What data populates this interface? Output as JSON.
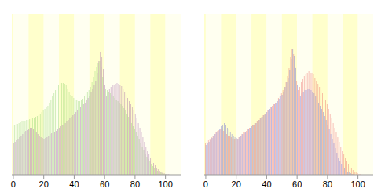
{
  "chart_data": [
    {
      "type": "bar",
      "x": [
        0,
        1,
        2,
        3,
        4,
        5,
        6,
        7,
        8,
        9,
        10,
        11,
        12,
        13,
        14,
        15,
        16,
        17,
        18,
        19,
        20,
        21,
        22,
        23,
        24,
        25,
        26,
        27,
        28,
        29,
        30,
        31,
        32,
        33,
        34,
        35,
        36,
        37,
        38,
        39,
        40,
        41,
        42,
        43,
        44,
        45,
        46,
        47,
        48,
        49,
        50,
        51,
        52,
        53,
        54,
        55,
        56,
        57,
        58,
        59,
        60,
        61,
        62,
        63,
        64,
        65,
        66,
        67,
        68,
        69,
        70,
        71,
        72,
        73,
        74,
        75,
        76,
        77,
        78,
        79,
        80,
        81,
        82,
        83,
        84,
        85,
        86,
        87,
        88,
        89,
        90,
        91,
        92,
        93,
        94,
        95,
        96,
        97,
        98,
        99,
        100,
        101,
        102,
        103,
        104
      ],
      "series": [
        {
          "color": "#88d066",
          "values": [
            62,
            63,
            64,
            65,
            66,
            67,
            68,
            68,
            69,
            70,
            70,
            71,
            72,
            72,
            73,
            74,
            75,
            76,
            78,
            80,
            82,
            84,
            86,
            88,
            92,
            96,
            100,
            104,
            108,
            112,
            114,
            116,
            117,
            117,
            116,
            114,
            110,
            106,
            102,
            100,
            98,
            96,
            95,
            94,
            94,
            95,
            97,
            100,
            103,
            106,
            108,
            112,
            118,
            125,
            132,
            138,
            142,
            145,
            138,
            125,
            115,
            110,
            108,
            106,
            104,
            102,
            100,
            98,
            96,
            94,
            92,
            90,
            88,
            85,
            82,
            78,
            74,
            70,
            66,
            62,
            58,
            54,
            50,
            45,
            40,
            35,
            31,
            27,
            23,
            20,
            17,
            14,
            11,
            9,
            7,
            5,
            4,
            3,
            2,
            1,
            1,
            1,
            0,
            0,
            0
          ]
        },
        {
          "color": "#a060a8",
          "values": [
            40,
            42,
            44,
            46,
            48,
            50,
            52,
            54,
            56,
            57,
            58,
            60,
            60,
            58,
            56,
            54,
            52,
            50,
            48,
            47,
            46,
            47,
            48,
            50,
            52,
            53,
            54,
            55,
            56,
            58,
            60,
            62,
            63,
            64,
            66,
            68,
            70,
            72,
            74,
            76,
            78,
            80,
            82,
            84,
            86,
            88,
            90,
            92,
            95,
            98,
            100,
            105,
            110,
            115,
            120,
            130,
            145,
            157,
            150,
            135,
            115,
            100,
            105,
            110,
            112,
            114,
            115,
            116,
            117,
            116,
            115,
            113,
            110,
            106,
            102,
            98,
            94,
            90,
            86,
            82,
            78,
            72,
            66,
            60,
            54,
            48,
            42,
            36,
            30,
            26,
            22,
            18,
            15,
            12,
            9,
            7,
            5,
            4,
            3,
            2,
            1,
            1,
            1,
            0,
            0
          ]
        }
      ],
      "xlim": [
        -1,
        110
      ],
      "xticks": [
        0,
        20,
        40,
        60,
        80,
        100
      ],
      "ylim": [
        0,
        205
      ],
      "tick_labels": "x"
    },
    {
      "type": "bar",
      "x": [
        0,
        1,
        2,
        3,
        4,
        5,
        6,
        7,
        8,
        9,
        10,
        11,
        12,
        13,
        14,
        15,
        16,
        17,
        18,
        19,
        20,
        21,
        22,
        23,
        24,
        25,
        26,
        27,
        28,
        29,
        30,
        31,
        32,
        33,
        34,
        35,
        36,
        37,
        38,
        39,
        40,
        41,
        42,
        43,
        44,
        45,
        46,
        47,
        48,
        49,
        50,
        51,
        52,
        53,
        54,
        55,
        56,
        57,
        58,
        59,
        60,
        61,
        62,
        63,
        64,
        65,
        66,
        67,
        68,
        69,
        70,
        71,
        72,
        73,
        74,
        75,
        76,
        77,
        78,
        79,
        80,
        81,
        82,
        83,
        84,
        85,
        86,
        87,
        88,
        89,
        90,
        91,
        92,
        93,
        94,
        95,
        96,
        97,
        98,
        99,
        100,
        101,
        102,
        103,
        104
      ],
      "series": [
        {
          "color": "#ee6060",
          "values": [
            40,
            42,
            44,
            46,
            48,
            50,
            52,
            54,
            56,
            57,
            58,
            58,
            56,
            54,
            52,
            50,
            50,
            48,
            46,
            46,
            45,
            46,
            48,
            50,
            52,
            54,
            55,
            56,
            58,
            60,
            62,
            63,
            64,
            66,
            68,
            70,
            72,
            74,
            76,
            78,
            80,
            82,
            84,
            86,
            88,
            90,
            92,
            95,
            98,
            100,
            104,
            108,
            112,
            118,
            126,
            136,
            150,
            160,
            154,
            138,
            120,
            108,
            112,
            118,
            122,
            126,
            128,
            130,
            132,
            130,
            130,
            128,
            124,
            120,
            116,
            112,
            108,
            104,
            100,
            96,
            90,
            84,
            78,
            72,
            66,
            60,
            54,
            48,
            42,
            36,
            30,
            26,
            22,
            18,
            14,
            11,
            8,
            6,
            4,
            3,
            2,
            1,
            1,
            0,
            0
          ]
        },
        {
          "color": "#6060d8",
          "values": [
            38,
            40,
            42,
            44,
            47,
            50,
            52,
            54,
            56,
            58,
            62,
            64,
            66,
            64,
            60,
            58,
            55,
            52,
            50,
            48,
            47,
            46,
            48,
            50,
            52,
            53,
            54,
            56,
            58,
            60,
            62,
            64,
            66,
            66,
            68,
            70,
            72,
            74,
            76,
            78,
            80,
            82,
            84,
            86,
            88,
            90,
            92,
            94,
            97,
            100,
            102,
            106,
            112,
            118,
            124,
            134,
            148,
            160,
            152,
            136,
            114,
            98,
            100,
            104,
            106,
            108,
            108,
            110,
            110,
            108,
            106,
            104,
            100,
            96,
            92,
            88,
            84,
            80,
            75,
            70,
            64,
            58,
            52,
            46,
            40,
            34,
            28,
            22,
            18,
            14,
            11,
            8,
            6,
            4,
            3,
            2,
            1,
            1,
            0,
            0,
            0,
            0,
            0,
            0,
            0
          ]
        }
      ],
      "xlim": [
        -1,
        110
      ],
      "xticks": [
        0,
        20,
        40,
        60,
        80,
        100
      ],
      "ylim": [
        0,
        205
      ],
      "tick_labels": "x"
    }
  ]
}
